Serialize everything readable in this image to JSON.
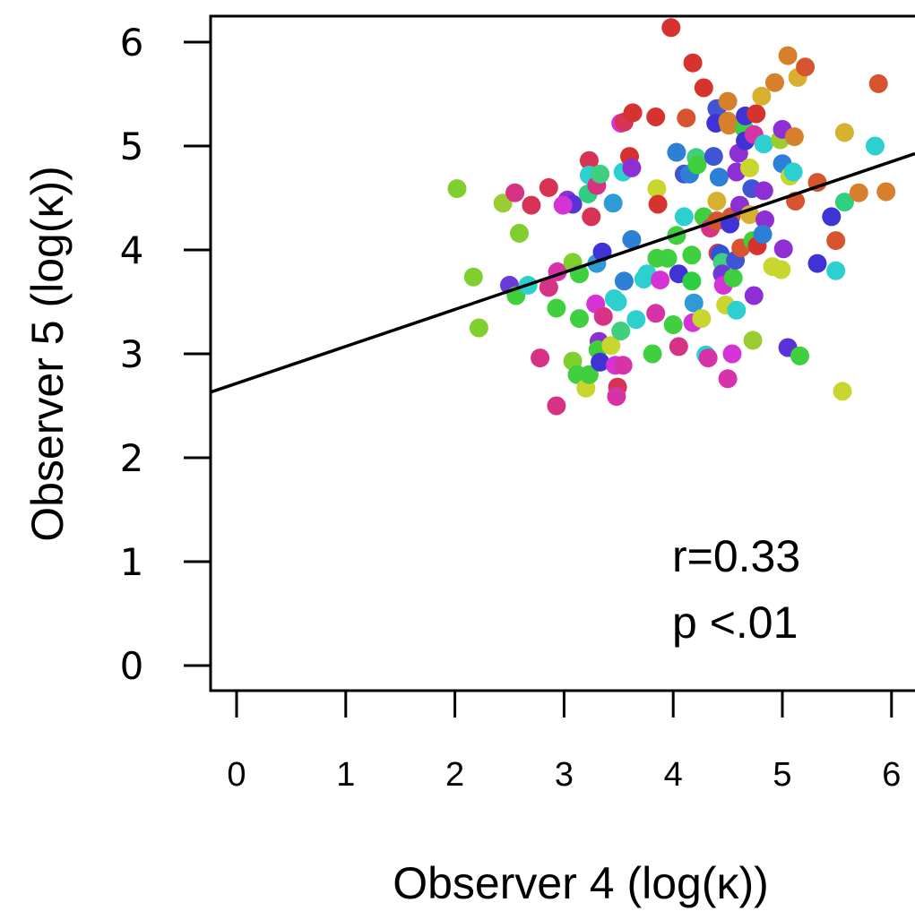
{
  "chart_data": {
    "type": "scatter",
    "title": "",
    "xlabel": "Observer 4 (log(κ))",
    "ylabel": "Observer 5 (log(κ))",
    "xlim": [
      -0.25,
      6.2
    ],
    "ylim": [
      -0.25,
      6.25
    ],
    "xticks": [
      "0",
      "1",
      "2",
      "3",
      "4",
      "5",
      "6"
    ],
    "yticks": [
      "0",
      "1",
      "2",
      "3",
      "4",
      "5",
      "6"
    ],
    "grid": false,
    "regression_line": {
      "intercept": 2.72,
      "slope": 0.355
    },
    "annotations": {
      "r": "r=0.33",
      "p": "p <.01"
    },
    "points": [
      {
        "x": 2.02,
        "y": 4.59,
        "color": "#7fcf2e"
      },
      {
        "x": 2.17,
        "y": 3.74,
        "color": "#7fcf2e"
      },
      {
        "x": 2.22,
        "y": 3.25,
        "color": "#7fcf2e"
      },
      {
        "x": 2.44,
        "y": 4.45,
        "color": "#9acd32"
      },
      {
        "x": 2.55,
        "y": 4.55,
        "color": "#d63384"
      },
      {
        "x": 2.59,
        "y": 4.16,
        "color": "#7fcf2e"
      },
      {
        "x": 2.7,
        "y": 4.43,
        "color": "#d63355"
      },
      {
        "x": 2.5,
        "y": 3.66,
        "color": "#6a3bd6"
      },
      {
        "x": 2.56,
        "y": 3.56,
        "color": "#3fcf3f"
      },
      {
        "x": 2.67,
        "y": 3.66,
        "color": "#2ecfcf"
      },
      {
        "x": 2.78,
        "y": 2.96,
        "color": "#d63384"
      },
      {
        "x": 2.86,
        "y": 4.6,
        "color": "#d63355"
      },
      {
        "x": 2.86,
        "y": 3.64,
        "color": "#d63384"
      },
      {
        "x": 2.94,
        "y": 3.79,
        "color": "#d633a8"
      },
      {
        "x": 2.93,
        "y": 3.44,
        "color": "#3fcf3f"
      },
      {
        "x": 2.93,
        "y": 2.5,
        "color": "#d63384"
      },
      {
        "x": 3.03,
        "y": 4.48,
        "color": "#8e2fd6"
      },
      {
        "x": 3.08,
        "y": 4.44,
        "color": "#5a33d6"
      },
      {
        "x": 2.99,
        "y": 4.43,
        "color": "#d633d6"
      },
      {
        "x": 3.08,
        "y": 3.88,
        "color": "#7fcf2e"
      },
      {
        "x": 3.14,
        "y": 3.77,
        "color": "#3fcf3f"
      },
      {
        "x": 3.14,
        "y": 3.34,
        "color": "#3fcf3f"
      },
      {
        "x": 3.08,
        "y": 2.93,
        "color": "#7fcf2e"
      },
      {
        "x": 3.12,
        "y": 2.8,
        "color": "#3fcf3f"
      },
      {
        "x": 3.2,
        "y": 2.67,
        "color": "#c8d62e"
      },
      {
        "x": 3.23,
        "y": 2.8,
        "color": "#3fcf3f"
      },
      {
        "x": 3.23,
        "y": 4.86,
        "color": "#d63355"
      },
      {
        "x": 3.23,
        "y": 4.72,
        "color": "#2ecfcf"
      },
      {
        "x": 3.22,
        "y": 4.54,
        "color": "#2ecf7f"
      },
      {
        "x": 3.25,
        "y": 4.32,
        "color": "#d63355"
      },
      {
        "x": 3.3,
        "y": 4.62,
        "color": "#d63384"
      },
      {
        "x": 3.33,
        "y": 4.73,
        "color": "#3fcf7f"
      },
      {
        "x": 3.3,
        "y": 3.87,
        "color": "#2e9ad6"
      },
      {
        "x": 3.35,
        "y": 3.98,
        "color": "#3f33d6"
      },
      {
        "x": 3.29,
        "y": 3.48,
        "color": "#d633d6"
      },
      {
        "x": 3.36,
        "y": 3.36,
        "color": "#d63384"
      },
      {
        "x": 3.32,
        "y": 3.12,
        "color": "#8e2fd6"
      },
      {
        "x": 3.31,
        "y": 3.04,
        "color": "#3fcf3f"
      },
      {
        "x": 3.33,
        "y": 2.92,
        "color": "#3f33d6"
      },
      {
        "x": 3.43,
        "y": 3.08,
        "color": "#c8d62e"
      },
      {
        "x": 3.46,
        "y": 3.53,
        "color": "#2ecfcf"
      },
      {
        "x": 3.49,
        "y": 3.5,
        "color": "#2ecfcf"
      },
      {
        "x": 3.47,
        "y": 2.89,
        "color": "#d633d6"
      },
      {
        "x": 3.49,
        "y": 2.68,
        "color": "#d63355"
      },
      {
        "x": 3.48,
        "y": 2.59,
        "color": "#d633a8"
      },
      {
        "x": 3.45,
        "y": 4.45,
        "color": "#2e9ad6"
      },
      {
        "x": 3.52,
        "y": 5.22,
        "color": "#d633d6"
      },
      {
        "x": 3.55,
        "y": 5.23,
        "color": "#d63355"
      },
      {
        "x": 3.54,
        "y": 4.75,
        "color": "#2ecfcf"
      },
      {
        "x": 3.6,
        "y": 4.9,
        "color": "#d6332e"
      },
      {
        "x": 3.62,
        "y": 4.79,
        "color": "#8e2fd6"
      },
      {
        "x": 3.63,
        "y": 5.32,
        "color": "#d6332e"
      },
      {
        "x": 3.55,
        "y": 3.7,
        "color": "#2e7fd6"
      },
      {
        "x": 3.52,
        "y": 3.22,
        "color": "#3fcf7f"
      },
      {
        "x": 3.54,
        "y": 2.89,
        "color": "#d633a8"
      },
      {
        "x": 3.62,
        "y": 4.1,
        "color": "#2e7fd6"
      },
      {
        "x": 3.66,
        "y": 3.33,
        "color": "#2ecfcf"
      },
      {
        "x": 3.73,
        "y": 3.72,
        "color": "#2ecfcf"
      },
      {
        "x": 3.76,
        "y": 3.77,
        "color": "#2ecfcf"
      },
      {
        "x": 3.81,
        "y": 3.0,
        "color": "#3fcf3f"
      },
      {
        "x": 3.84,
        "y": 3.39,
        "color": "#d633a8"
      },
      {
        "x": 3.84,
        "y": 5.28,
        "color": "#d6332e"
      },
      {
        "x": 3.85,
        "y": 4.59,
        "color": "#c8d62e"
      },
      {
        "x": 3.86,
        "y": 4.44,
        "color": "#d6332e"
      },
      {
        "x": 3.85,
        "y": 3.92,
        "color": "#3fcf3f"
      },
      {
        "x": 3.88,
        "y": 3.71,
        "color": "#d633d6"
      },
      {
        "x": 3.95,
        "y": 3.92,
        "color": "#3fcf3f"
      },
      {
        "x": 3.98,
        "y": 6.14,
        "color": "#d6332e"
      },
      {
        "x": 4.0,
        "y": 3.28,
        "color": "#3fcf3f"
      },
      {
        "x": 4.03,
        "y": 4.94,
        "color": "#2e7fd6"
      },
      {
        "x": 4.03,
        "y": 4.14,
        "color": "#3fcf3f"
      },
      {
        "x": 4.05,
        "y": 3.77,
        "color": "#3f33d6"
      },
      {
        "x": 4.05,
        "y": 3.07,
        "color": "#d63384"
      },
      {
        "x": 4.1,
        "y": 4.73,
        "color": "#3f55d6"
      },
      {
        "x": 4.1,
        "y": 4.32,
        "color": "#2ecfcf"
      },
      {
        "x": 4.12,
        "y": 5.27,
        "color": "#d6552e"
      },
      {
        "x": 4.15,
        "y": 4.73,
        "color": "#2e7fd6"
      },
      {
        "x": 4.18,
        "y": 5.8,
        "color": "#d6332e"
      },
      {
        "x": 4.17,
        "y": 3.95,
        "color": "#3fcf3f"
      },
      {
        "x": 4.17,
        "y": 3.7,
        "color": "#2ecf3f"
      },
      {
        "x": 4.19,
        "y": 3.49,
        "color": "#2e9ad6"
      },
      {
        "x": 4.18,
        "y": 3.3,
        "color": "#d633d6"
      },
      {
        "x": 4.21,
        "y": 4.89,
        "color": "#3fcf7f"
      },
      {
        "x": 4.22,
        "y": 4.82,
        "color": "#3fcf3f"
      },
      {
        "x": 4.26,
        "y": 3.34,
        "color": "#c8d62e"
      },
      {
        "x": 4.28,
        "y": 5.56,
        "color": "#d6332e"
      },
      {
        "x": 4.28,
        "y": 4.32,
        "color": "#3fcf3f"
      },
      {
        "x": 4.3,
        "y": 2.99,
        "color": "#2ecfcf"
      },
      {
        "x": 4.32,
        "y": 2.96,
        "color": "#d633a8"
      },
      {
        "x": 4.34,
        "y": 4.21,
        "color": "#d63384"
      },
      {
        "x": 4.37,
        "y": 4.9,
        "color": "#3f55d6"
      },
      {
        "x": 4.4,
        "y": 5.36,
        "color": "#3f55d6"
      },
      {
        "x": 4.39,
        "y": 5.22,
        "color": "#3f33d6"
      },
      {
        "x": 4.4,
        "y": 4.47,
        "color": "#d6b02e"
      },
      {
        "x": 4.42,
        "y": 4.7,
        "color": "#2e7fd6"
      },
      {
        "x": 4.4,
        "y": 4.28,
        "color": "#d6552e"
      },
      {
        "x": 4.41,
        "y": 3.97,
        "color": "#d63355"
      },
      {
        "x": 4.43,
        "y": 3.96,
        "color": "#2e55d6"
      },
      {
        "x": 4.45,
        "y": 3.88,
        "color": "#3fcf7f"
      },
      {
        "x": 4.45,
        "y": 3.77,
        "color": "#6a3bd6"
      },
      {
        "x": 4.46,
        "y": 3.66,
        "color": "#d633d6"
      },
      {
        "x": 4.48,
        "y": 3.47,
        "color": "#c8d62e"
      },
      {
        "x": 4.5,
        "y": 5.43,
        "color": "#d6802e"
      },
      {
        "x": 4.5,
        "y": 5.24,
        "color": "#d6802e"
      },
      {
        "x": 4.51,
        "y": 5.2,
        "color": "#d6802e"
      },
      {
        "x": 4.53,
        "y": 4.32,
        "color": "#d6552e"
      },
      {
        "x": 4.52,
        "y": 4.25,
        "color": "#3f33d6"
      },
      {
        "x": 4.55,
        "y": 3.73,
        "color": "#3fcf3f"
      },
      {
        "x": 4.54,
        "y": 3.0,
        "color": "#d633d6"
      },
      {
        "x": 4.5,
        "y": 2.76,
        "color": "#d633a8"
      },
      {
        "x": 4.58,
        "y": 4.75,
        "color": "#8e2fd6"
      },
      {
        "x": 4.6,
        "y": 4.93,
        "color": "#8e2fd6"
      },
      {
        "x": 4.61,
        "y": 4.43,
        "color": "#8e2fd6"
      },
      {
        "x": 4.57,
        "y": 3.9,
        "color": "#3f55d6"
      },
      {
        "x": 4.58,
        "y": 3.42,
        "color": "#2ecfcf"
      },
      {
        "x": 4.62,
        "y": 4.02,
        "color": "#d6552e"
      },
      {
        "x": 4.65,
        "y": 5.17,
        "color": "#3fcf3f"
      },
      {
        "x": 4.66,
        "y": 5.29,
        "color": "#3f33d6"
      },
      {
        "x": 4.66,
        "y": 5.05,
        "color": "#3f33d6"
      },
      {
        "x": 4.7,
        "y": 4.79,
        "color": "#c8d62e"
      },
      {
        "x": 4.72,
        "y": 4.59,
        "color": "#3f55d6"
      },
      {
        "x": 4.7,
        "y": 4.34,
        "color": "#d6b02e"
      },
      {
        "x": 4.73,
        "y": 4.09,
        "color": "#3fcf3f"
      },
      {
        "x": 4.73,
        "y": 3.13,
        "color": "#9acd32"
      },
      {
        "x": 4.74,
        "y": 5.11,
        "color": "#d633a8"
      },
      {
        "x": 4.76,
        "y": 5.31,
        "color": "#d6332e"
      },
      {
        "x": 4.77,
        "y": 4.04,
        "color": "#d6332e"
      },
      {
        "x": 4.74,
        "y": 3.56,
        "color": "#8e2fd6"
      },
      {
        "x": 4.81,
        "y": 5.48,
        "color": "#d6b02e"
      },
      {
        "x": 4.83,
        "y": 5.02,
        "color": "#2ecfcf"
      },
      {
        "x": 4.83,
        "y": 4.57,
        "color": "#8e2fd6"
      },
      {
        "x": 4.84,
        "y": 4.29,
        "color": "#8e2fd6"
      },
      {
        "x": 4.82,
        "y": 4.15,
        "color": "#2e7fd6"
      },
      {
        "x": 4.91,
        "y": 3.84,
        "color": "#c8d62e"
      },
      {
        "x": 4.93,
        "y": 5.61,
        "color": "#d6802e"
      },
      {
        "x": 4.98,
        "y": 5.06,
        "color": "#9acd32"
      },
      {
        "x": 5.0,
        "y": 5.16,
        "color": "#8e2fd6"
      },
      {
        "x": 5.0,
        "y": 4.83,
        "color": "#2e7fd6"
      },
      {
        "x": 5.01,
        "y": 4.01,
        "color": "#8e2fd6"
      },
      {
        "x": 4.99,
        "y": 3.81,
        "color": "#c8d62e"
      },
      {
        "x": 5.05,
        "y": 5.87,
        "color": "#d6802e"
      },
      {
        "x": 5.07,
        "y": 4.71,
        "color": "#c8d62e"
      },
      {
        "x": 5.05,
        "y": 3.06,
        "color": "#5a33d6"
      },
      {
        "x": 5.1,
        "y": 4.75,
        "color": "#2ecfcf"
      },
      {
        "x": 5.12,
        "y": 4.47,
        "color": "#d6552e"
      },
      {
        "x": 5.14,
        "y": 5.66,
        "color": "#d6b02e"
      },
      {
        "x": 5.16,
        "y": 2.98,
        "color": "#3fcf3f"
      },
      {
        "x": 5.21,
        "y": 5.76,
        "color": "#d6552e"
      },
      {
        "x": 5.32,
        "y": 4.65,
        "color": "#d6552e"
      },
      {
        "x": 5.32,
        "y": 3.87,
        "color": "#3f33d6"
      },
      {
        "x": 5.45,
        "y": 4.32,
        "color": "#3f33d6"
      },
      {
        "x": 5.49,
        "y": 4.09,
        "color": "#d6552e"
      },
      {
        "x": 5.49,
        "y": 3.8,
        "color": "#2ecfcf"
      },
      {
        "x": 5.55,
        "y": 2.64,
        "color": "#c8d62e"
      },
      {
        "x": 5.57,
        "y": 5.13,
        "color": "#d6b02e"
      },
      {
        "x": 5.57,
        "y": 4.46,
        "color": "#2ecf7f"
      },
      {
        "x": 5.7,
        "y": 4.55,
        "color": "#d6802e"
      },
      {
        "x": 5.85,
        "y": 5.0,
        "color": "#2ecfcf"
      },
      {
        "x": 5.88,
        "y": 5.6,
        "color": "#d6552e"
      },
      {
        "x": 5.95,
        "y": 4.56,
        "color": "#d6802e"
      },
      {
        "x": 5.11,
        "y": 5.09,
        "color": "#d6802e"
      }
    ]
  }
}
